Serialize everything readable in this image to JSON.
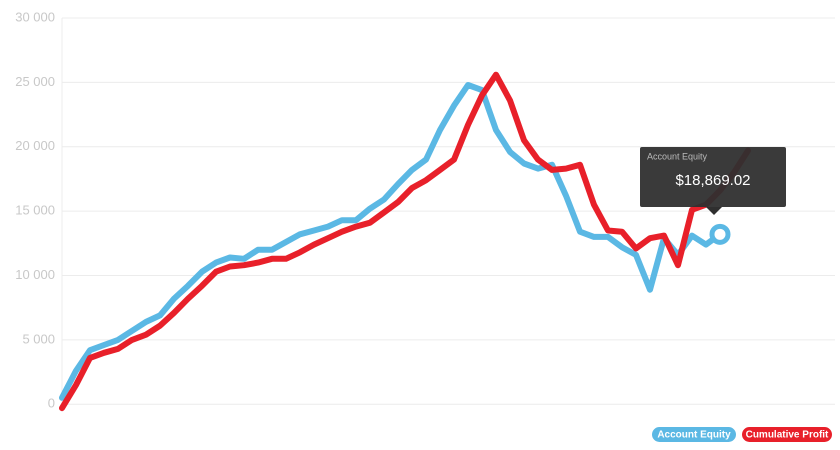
{
  "chart_data": {
    "type": "line",
    "ylim": [
      -600,
      30000
    ],
    "yticks": [
      0,
      {
        "value": 5000,
        "label": "5 000"
      },
      {
        "value": 10000,
        "label": "10 000"
      },
      {
        "value": 15000,
        "label": "15 000"
      },
      {
        "value": 20000,
        "label": "20 000"
      },
      {
        "value": 25000,
        "label": "25 000"
      },
      {
        "value": 30000,
        "label": "30 000"
      }
    ],
    "grid": true,
    "legend": "bottom-right",
    "series": [
      {
        "name": "Account Equity",
        "color": "#5bb8e4",
        "values": [
          500,
          2600,
          4200,
          4600,
          5000,
          5700,
          6400,
          6900,
          8200,
          9200,
          10300,
          11000,
          11400,
          11300,
          12000,
          12000,
          12600,
          13200,
          13500,
          13800,
          14300,
          14300,
          15200,
          15900,
          17100,
          18200,
          19000,
          21300,
          23200,
          24800,
          24400,
          21300,
          19600,
          18700,
          18300,
          18600,
          16200,
          13400,
          13000,
          13000,
          12200,
          11600,
          8900,
          12900,
          11600,
          13100,
          12400,
          13200,
          null,
          null
        ]
      },
      {
        "name": "Cumulative Profit",
        "color": "#e8202a",
        "values": [
          -300,
          1500,
          3600,
          4000,
          4300,
          5000,
          5400,
          6100,
          7100,
          8200,
          9200,
          10300,
          10700,
          10800,
          11000,
          11300,
          11300,
          11800,
          12400,
          12900,
          13400,
          13800,
          14100,
          14900,
          15700,
          16800,
          17400,
          18200,
          19000,
          21700,
          24000,
          25600,
          23600,
          20500,
          19000,
          18200,
          18300,
          18600,
          15500,
          13500,
          13400,
          12100,
          12900,
          13100,
          10800,
          15100,
          15500,
          16600,
          18000,
          19700
        ]
      }
    ],
    "tooltip": {
      "title": "Account Equity",
      "value": "$18,869.02"
    }
  }
}
